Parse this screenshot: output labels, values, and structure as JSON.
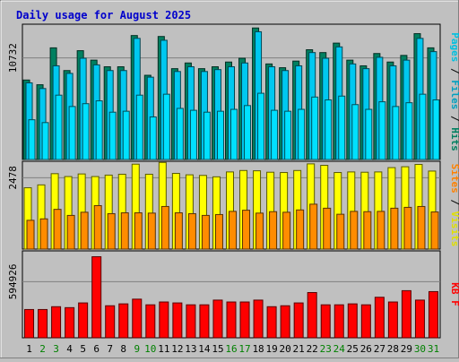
{
  "chart_data": {
    "type": "bar",
    "title": "Daily usage for August 2025",
    "title_color": "#0000cc",
    "background": "#c0c0c0",
    "categories": [
      "1",
      "2",
      "3",
      "4",
      "5",
      "6",
      "7",
      "8",
      "9",
      "10",
      "11",
      "12",
      "13",
      "14",
      "15",
      "16",
      "17",
      "18",
      "19",
      "20",
      "21",
      "22",
      "23",
      "24",
      "25",
      "26",
      "27",
      "28",
      "29",
      "30",
      "31"
    ],
    "weekend_days": [
      "2",
      "3",
      "9",
      "10",
      "16",
      "17",
      "23",
      "24",
      "30",
      "31"
    ],
    "weekend_label_color": "#008000",
    "weekday_label_color": "#000000",
    "panels": [
      {
        "id": "hits-files-pages",
        "tick_label": "10732",
        "tick_value": 10732,
        "ymax": 14300,
        "axis_labels": [
          {
            "text": "Pages",
            "color": "#00c0e0"
          },
          {
            "text": " / ",
            "color": "#000000"
          },
          {
            "text": "Files",
            "color": "#00a0c0"
          },
          {
            "text": " / ",
            "color": "#000000"
          },
          {
            "text": "Hits",
            "color": "#008060"
          }
        ],
        "series": [
          {
            "name": "Hits",
            "color": "#008060",
            "values": [
              8400,
              7900,
              11800,
              9400,
              11500,
              10500,
              9800,
              9800,
              13100,
              8900,
              13000,
              9600,
              10200,
              9600,
              9800,
              10300,
              10700,
              13900,
              10100,
              9700,
              10400,
              11600,
              11300,
              12300,
              10500,
              9900,
              11200,
              10300,
              11000,
              13300,
              11800
            ]
          },
          {
            "name": "Files",
            "color": "#00c8f0",
            "values": [
              8100,
              7500,
              9900,
              9100,
              10700,
              10000,
              9400,
              9400,
              12800,
              8700,
              12600,
              9300,
              9800,
              9300,
              9500,
              9800,
              10200,
              13500,
              9800,
              9400,
              9900,
              11300,
              10700,
              11900,
              10100,
              9600,
              10800,
              9900,
              10500,
              12800,
              11400
            ]
          },
          {
            "name": "Pages",
            "color": "#00e0ff",
            "values": [
              4200,
              3900,
              6800,
              5600,
              5900,
              6200,
              5000,
              5100,
              6800,
              4500,
              6900,
              5400,
              5200,
              5000,
              5100,
              5300,
              5700,
              7000,
              5200,
              5100,
              5300,
              6600,
              6300,
              6700,
              5800,
              5300,
              6100,
              5600,
              6000,
              6900,
              6300
            ]
          }
        ]
      },
      {
        "id": "visits-sites",
        "tick_label": "2478",
        "tick_value": 2478,
        "ymax": 3050,
        "axis_labels": [
          {
            "text": "Sites",
            "color": "#ff8000"
          },
          {
            "text": " / ",
            "color": "#000000"
          },
          {
            "text": "Visits",
            "color": "#e0e000"
          }
        ],
        "series": [
          {
            "name": "Visits",
            "color": "#ffff00",
            "values": [
              2130,
              2230,
              2620,
              2520,
              2610,
              2520,
              2570,
              2600,
              2950,
              2600,
              3010,
              2630,
              2580,
              2560,
              2510,
              2680,
              2730,
              2720,
              2670,
              2660,
              2730,
              2960,
              2910,
              2660,
              2680,
              2670,
              2680,
              2830,
              2860,
              2940,
              2710
            ]
          },
          {
            "name": "Sites",
            "color": "#ff8c00",
            "values": [
              1000,
              1050,
              1380,
              1170,
              1280,
              1510,
              1230,
              1260,
              1260,
              1250,
              1480,
              1260,
              1230,
              1170,
              1200,
              1310,
              1350,
              1250,
              1300,
              1280,
              1360,
              1560,
              1420,
              1210,
              1310,
              1300,
              1310,
              1420,
              1450,
              1480,
              1290
            ]
          }
        ]
      },
      {
        "id": "kbytes",
        "tick_label": "594926",
        "tick_value": 594926,
        "ymax": 922000,
        "axis_labels": [
          {
            "text": "KB F",
            "color": "#ff0000"
          }
        ],
        "series": [
          {
            "name": "KB F",
            "color": "#ff0000",
            "values": [
              300000,
              300000,
              330000,
              320000,
              370000,
              860000,
              340000,
              360000,
              410000,
              350000,
              380000,
              370000,
              350000,
              350000,
              400000,
              380000,
              380000,
              400000,
              330000,
              340000,
              370000,
              480000,
              350000,
              350000,
              360000,
              350000,
              430000,
              380000,
              500000,
              400000,
              490000
            ]
          }
        ]
      }
    ]
  }
}
